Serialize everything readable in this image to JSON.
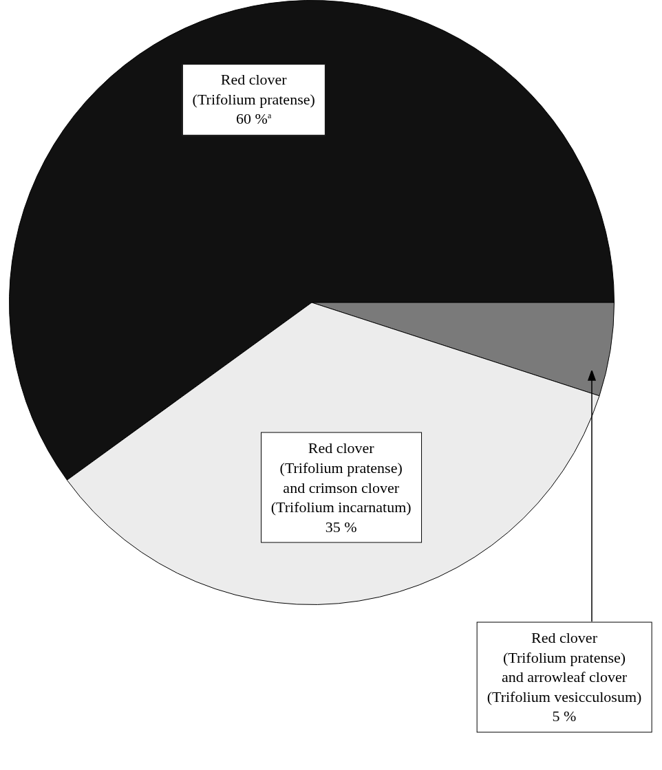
{
  "chart_data": {
    "type": "pie",
    "categories": [
      "Red clover\n(Trifolium pratense)",
      "Red clover\n(Trifolium pratense)\nand arrowleaf clover\n(Trifolium vesicculosum)",
      "Red clover\n(Trifolium pratense)\nand crimson clover\n(Trifolium incarnatum)"
    ],
    "values": [
      60,
      5,
      35
    ],
    "colors": [
      "#111111",
      "#7a7a7a",
      "#ececec"
    ],
    "value_labels": [
      "60 %$^{a}$",
      "5 %",
      "35 %"
    ],
    "legend": false
  }
}
